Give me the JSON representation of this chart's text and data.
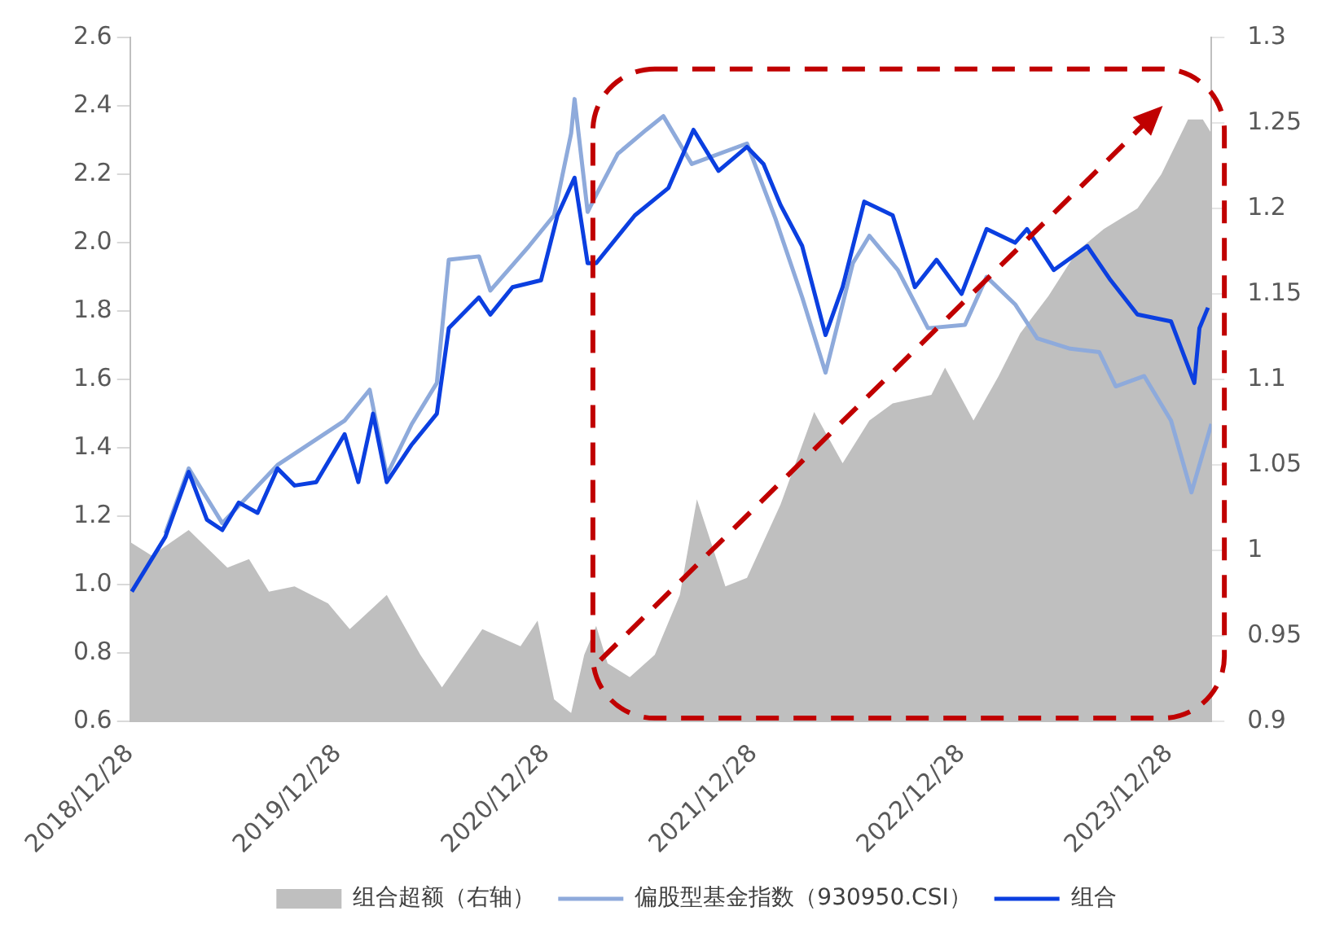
{
  "chart_data": {
    "type": "area",
    "xlim": [
      "2018-12-28",
      "2024-03-11"
    ],
    "xticks": [
      {
        "value": "2018-12-28",
        "label": "2018/12/28"
      },
      {
        "value": "2019-12-28",
        "label": "2019/12/28"
      },
      {
        "value": "2020-12-28",
        "label": "2020/12/28"
      },
      {
        "value": "2021-12-28",
        "label": "2021/12/28"
      },
      {
        "value": "2022-12-28",
        "label": "2022/12/28"
      },
      {
        "value": "2023-12-28",
        "label": "2023/12/28"
      }
    ],
    "ylim": [
      0.6,
      2.6
    ],
    "yticks": [
      {
        "value": 0.6,
        "label": "0.6"
      },
      {
        "value": 0.8,
        "label": "0.8"
      },
      {
        "value": 1,
        "label": "1.0"
      },
      {
        "value": 1.2,
        "label": "1.2"
      },
      {
        "value": 1.4,
        "label": "1.4"
      },
      {
        "value": 1.6,
        "label": "1.6"
      },
      {
        "value": 1.8,
        "label": "1.8"
      },
      {
        "value": 2,
        "label": "2.0"
      },
      {
        "value": 2.2,
        "label": "2.2"
      },
      {
        "value": 2.4,
        "label": "2.4"
      },
      {
        "value": 2.6,
        "label": "2.6"
      }
    ],
    "y2lim": [
      0.9,
      1.3
    ],
    "y2ticks": [
      0.9,
      0.95,
      1,
      1.05,
      1.1,
      1.15,
      1.2,
      1.25,
      1.3
    ],
    "grid": false,
    "legend": "bottom",
    "series": [
      {
        "name": "组合超额（右轴）",
        "type": "area",
        "axis": "y2",
        "color": "#bfbfbf",
        "x": [
          "2018-12-28",
          "2019-02-04",
          "2019-04-10",
          "2019-06-17",
          "2019-07-25",
          "2019-08-29",
          "2019-10-13",
          "2019-12-11",
          "2020-01-18",
          "2020-03-23",
          "2020-05-21",
          "2020-06-28",
          "2020-09-07",
          "2020-11-13",
          "2020-12-13",
          "2021-01-11",
          "2021-02-10",
          "2021-03-05",
          "2021-03-26",
          "2021-04-15",
          "2021-05-24",
          "2021-07-07",
          "2021-08-20",
          "2021-09-19",
          "2021-11-08",
          "2021-12-16",
          "2022-02-13",
          "2022-04-13",
          "2022-06-02",
          "2022-07-19",
          "2022-08-29",
          "2022-11-05",
          "2022-11-29",
          "2023-01-18",
          "2023-03-03",
          "2023-04-10",
          "2023-05-30",
          "2023-07-19",
          "2023-09-04",
          "2023-11-02",
          "2023-12-14",
          "2024-01-30",
          "2024-02-25",
          "2024-03-11"
        ],
        "values": [
          1.005,
          0.997,
          1.012,
          0.99,
          0.995,
          0.976,
          0.979,
          0.969,
          0.954,
          0.974,
          0.939,
          0.92,
          0.954,
          0.944,
          0.959,
          0.913,
          0.905,
          0.939,
          0.956,
          0.934,
          0.926,
          0.939,
          0.974,
          1.03,
          0.979,
          0.984,
          1.027,
          1.081,
          1.051,
          1.076,
          1.086,
          1.091,
          1.107,
          1.076,
          1.102,
          1.127,
          1.149,
          1.175,
          1.188,
          1.2,
          1.22,
          1.252,
          1.252,
          1.244
        ]
      },
      {
        "name": "偏股型基金指数（930950.CSI）",
        "type": "line",
        "color": "#8eaadb",
        "x": [
          "2019-02-28",
          "2019-04-10",
          "2019-06-08",
          "2019-09-13",
          "2020-01-09",
          "2020-02-22",
          "2020-03-23",
          "2020-05-06",
          "2020-06-19",
          "2020-07-10",
          "2020-09-01",
          "2020-09-21",
          "2020-11-28",
          "2021-01-11",
          "2021-02-10",
          "2021-02-16",
          "2021-03-11",
          "2021-03-26",
          "2021-05-03",
          "2021-06-22",
          "2021-07-22",
          "2021-09-10",
          "2021-12-16",
          "2022-02-04",
          "2022-03-23",
          "2022-05-03",
          "2022-06-20",
          "2022-07-19",
          "2022-09-07",
          "2022-10-30",
          "2023-01-03",
          "2023-02-10",
          "2023-04-01",
          "2023-05-10",
          "2023-07-07",
          "2023-08-27",
          "2023-09-25",
          "2023-11-14",
          "2023-12-31",
          "2024-02-05",
          "2024-03-11"
        ],
        "values": [
          1.15,
          1.34,
          1.18,
          1.35,
          1.48,
          1.57,
          1.32,
          1.47,
          1.59,
          1.95,
          1.96,
          1.86,
          1.99,
          2.08,
          2.32,
          2.42,
          2.09,
          2.14,
          2.26,
          2.33,
          2.37,
          2.23,
          2.29,
          2.07,
          1.84,
          1.62,
          1.94,
          2.02,
          1.92,
          1.75,
          1.76,
          1.9,
          1.82,
          1.72,
          1.69,
          1.68,
          1.58,
          1.61,
          1.48,
          1.27,
          1.47
        ]
      },
      {
        "name": "组合",
        "type": "line",
        "color": "#0b3fe0",
        "x": [
          "2018-12-31",
          "2019-02-28",
          "2019-04-10",
          "2019-05-12",
          "2019-06-08",
          "2019-07-07",
          "2019-08-09",
          "2019-09-13",
          "2019-10-13",
          "2019-11-20",
          "2020-01-09",
          "2020-02-02",
          "2020-02-28",
          "2020-03-23",
          "2020-05-06",
          "2020-06-19",
          "2020-07-10",
          "2020-09-01",
          "2020-09-21",
          "2020-10-30",
          "2020-12-19",
          "2021-01-17",
          "2021-02-16",
          "2021-03-11",
          "2021-03-26",
          "2021-06-02",
          "2021-07-31",
          "2021-09-13",
          "2021-10-27",
          "2021-12-16",
          "2022-01-14",
          "2022-02-13",
          "2022-03-23",
          "2022-05-03",
          "2022-06-02",
          "2022-07-10",
          "2022-08-29",
          "2022-10-07",
          "2022-11-14",
          "2022-12-28",
          "2023-02-10",
          "2023-04-01",
          "2023-04-22",
          "2023-06-08",
          "2023-08-06",
          "2023-09-16",
          "2023-11-02",
          "2023-12-31",
          "2024-02-10",
          "2024-02-19",
          "2024-03-05"
        ],
        "values": [
          0.98,
          1.14,
          1.33,
          1.19,
          1.16,
          1.24,
          1.21,
          1.34,
          1.29,
          1.3,
          1.44,
          1.3,
          1.5,
          1.3,
          1.41,
          1.5,
          1.75,
          1.84,
          1.79,
          1.87,
          1.89,
          2.08,
          2.19,
          1.94,
          1.94,
          2.08,
          2.16,
          2.33,
          2.21,
          2.28,
          2.23,
          2.11,
          1.99,
          1.73,
          1.87,
          2.12,
          2.08,
          1.87,
          1.95,
          1.85,
          2.04,
          2.0,
          2.04,
          1.92,
          1.99,
          1.89,
          1.79,
          1.77,
          1.59,
          1.75,
          1.81
        ]
      }
    ]
  }
}
